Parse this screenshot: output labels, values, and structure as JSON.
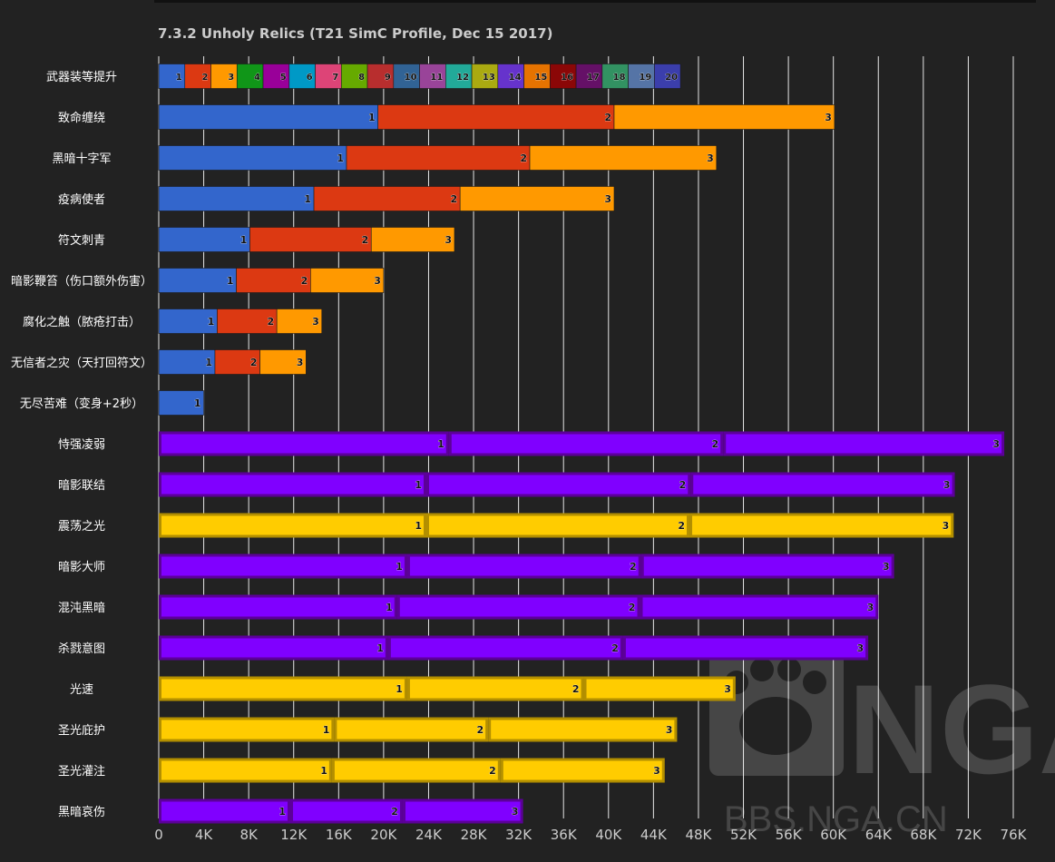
{
  "chart_data": {
    "type": "bar",
    "orientation": "horizontal",
    "stacked": true,
    "title": "7.3.2 Unholy Relics (T21 SimC Profile, Dec 15 2017)",
    "xlabel": "",
    "ylabel": "",
    "xlim": [
      0,
      76000
    ],
    "x_tick_labels": [
      "0",
      "4K",
      "8K",
      "12K",
      "16K",
      "20K",
      "24K",
      "28K",
      "32K",
      "36K",
      "40K",
      "44K",
      "48K",
      "52K",
      "56K",
      "60K",
      "64K",
      "68K",
      "72K",
      "76K"
    ],
    "grid": true,
    "colors": {
      "background": "#222222",
      "grid": "#e6e6e6",
      "tick_text": "#cccccc",
      "category_text": "#ffffff",
      "title_text": "#cccccc",
      "trait_blue": "#3366cc",
      "trait_red": "#dc3912",
      "trait_orange": "#ff9900",
      "purple_fill": "#8000ff",
      "purple_border": "#5c0099",
      "gold_fill": "#ffcc00",
      "gold_border": "#b38f00"
    },
    "ilvl_row": {
      "category": "武器装等提升",
      "labels": [
        "1",
        "2",
        "3",
        "4",
        "5",
        "6",
        "7",
        "8",
        "9",
        "10",
        "11",
        "12",
        "13",
        "14",
        "15",
        "16",
        "17",
        "18",
        "19",
        "20"
      ],
      "widths": [
        2320,
        2320,
        2320,
        2320,
        2320,
        2320,
        2320,
        2320,
        2320,
        2320,
        2320,
        2320,
        2320,
        2320,
        2320,
        2320,
        2320,
        2320,
        2320,
        2320
      ],
      "colors": [
        "#3366cc",
        "#dc3912",
        "#ff9900",
        "#109618",
        "#990099",
        "#0099c6",
        "#dd4477",
        "#66aa00",
        "#b82e2e",
        "#316395",
        "#994499",
        "#22aa99",
        "#aaaa11",
        "#6633cc",
        "#e67300",
        "#8b0707",
        "#651067",
        "#329262",
        "#5574a6",
        "#3b3eac"
      ]
    },
    "rows": [
      {
        "category": "致命缠绕",
        "style": "trait",
        "values": [
          19500,
          21000,
          19600
        ],
        "labels": [
          "1",
          "2",
          "3"
        ]
      },
      {
        "category": "黑暗十字军",
        "style": "trait",
        "values": [
          16700,
          16300,
          16600
        ],
        "labels": [
          "1",
          "2",
          "3"
        ]
      },
      {
        "category": "疫病使者",
        "style": "trait",
        "values": [
          13800,
          13000,
          13700
        ],
        "labels": [
          "1",
          "2",
          "3"
        ]
      },
      {
        "category": "符文刺青",
        "style": "trait",
        "values": [
          8100,
          10800,
          7400
        ],
        "labels": [
          "1",
          "2",
          "3"
        ]
      },
      {
        "category": "暗影鞭笞（伤口额外伤害）",
        "style": "trait",
        "values": [
          6900,
          6600,
          6500
        ],
        "labels": [
          "1",
          "2",
          "3"
        ]
      },
      {
        "category": "腐化之触（脓疮打击）",
        "style": "trait",
        "values": [
          5200,
          5300,
          4000
        ],
        "labels": [
          "1",
          "2",
          "3"
        ]
      },
      {
        "category": "无信者之灾（天打回符文）",
        "style": "trait",
        "values": [
          5000,
          4000,
          4100
        ],
        "labels": [
          "1",
          "2",
          "3"
        ]
      },
      {
        "category": "无尽苦难（变身+2秒）",
        "style": "trait",
        "values": [
          4000
        ],
        "labels": [
          "1"
        ]
      },
      {
        "category": "恃强凌弱",
        "style": "purple",
        "values": [
          25800,
          24400,
          25000
        ],
        "labels": [
          "1",
          "2",
          "3"
        ]
      },
      {
        "category": "暗影联结",
        "style": "purple",
        "values": [
          23800,
          23500,
          23500
        ],
        "labels": [
          "1",
          "2",
          "3"
        ]
      },
      {
        "category": "震荡之光",
        "style": "gold",
        "values": [
          23800,
          23400,
          23500
        ],
        "labels": [
          "1",
          "2",
          "3"
        ]
      },
      {
        "category": "暗影大师",
        "style": "purple",
        "values": [
          22100,
          20800,
          22500
        ],
        "labels": [
          "1",
          "2",
          "3"
        ]
      },
      {
        "category": "混沌黑暗",
        "style": "purple",
        "values": [
          21200,
          21600,
          21200
        ],
        "labels": [
          "1",
          "2",
          "3"
        ]
      },
      {
        "category": "杀戮意图",
        "style": "purple",
        "values": [
          20400,
          20900,
          21800
        ],
        "labels": [
          "1",
          "2",
          "3"
        ]
      },
      {
        "category": "光速",
        "style": "gold",
        "values": [
          22100,
          15700,
          13500
        ],
        "labels": [
          "1",
          "2",
          "3"
        ]
      },
      {
        "category": "圣光庇护",
        "style": "gold",
        "values": [
          15600,
          13700,
          16800
        ],
        "labels": [
          "1",
          "2",
          "3"
        ]
      },
      {
        "category": "圣光灌注",
        "style": "gold",
        "values": [
          15400,
          15000,
          14600
        ],
        "labels": [
          "1",
          "2",
          "3"
        ]
      },
      {
        "category": "黑暗哀伤",
        "style": "purple",
        "values": [
          11700,
          10000,
          10700
        ],
        "labels": [
          "1",
          "2",
          "3"
        ]
      }
    ]
  },
  "watermark": {
    "logo_text": "NGA",
    "site_text": "BBS.NGA.CN"
  }
}
